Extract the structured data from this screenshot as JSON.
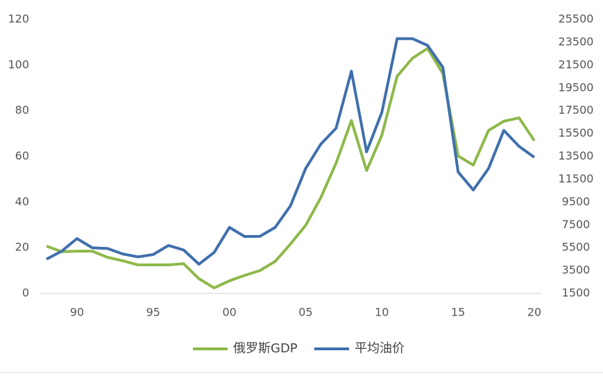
{
  "chart_data": {
    "type": "line",
    "x": [
      1988,
      1989,
      1990,
      1991,
      1992,
      1993,
      1994,
      1995,
      1996,
      1997,
      1998,
      1999,
      2000,
      2001,
      2002,
      2003,
      2004,
      2005,
      2006,
      2007,
      2008,
      2009,
      2010,
      2011,
      2012,
      2013,
      2014,
      2015,
      2016,
      2017,
      2018,
      2019,
      2020
    ],
    "xlim": [
      1988,
      2020
    ],
    "xticks": [
      {
        "value": 1990,
        "label": "90"
      },
      {
        "value": 1995,
        "label": "95"
      },
      {
        "value": 2000,
        "label": "00"
      },
      {
        "value": 2005,
        "label": "05"
      },
      {
        "value": 2010,
        "label": "10"
      },
      {
        "value": 2015,
        "label": "15"
      },
      {
        "value": 2020,
        "label": "20"
      }
    ],
    "ylim": [
      0,
      120
    ],
    "yticks": [
      0,
      20,
      40,
      60,
      80,
      100,
      120
    ],
    "y2lim": [
      1500,
      25500
    ],
    "y2ticks": [
      1500,
      3500,
      5500,
      7500,
      9500,
      11500,
      13500,
      15500,
      17500,
      19500,
      21500,
      23500,
      25500
    ],
    "legend": "bottom",
    "series": [
      {
        "name": "俄罗斯GDP",
        "color": "#8db849",
        "axis": "y2",
        "values": [
          5640,
          5150,
          5200,
          5200,
          4660,
          4360,
          4000,
          4000,
          4000,
          4100,
          2780,
          1980,
          2600,
          3080,
          3500,
          4300,
          5820,
          7460,
          9900,
          12920,
          16640,
          12260,
          15360,
          20520,
          22100,
          22960,
          20760,
          13540,
          12740,
          15780,
          16580,
          16880,
          14880
        ]
      },
      {
        "name": "平均油价",
        "color": "#3f6fad",
        "values": [
          15,
          18.5,
          24,
          20,
          19.7,
          17.3,
          16,
          17,
          21,
          19,
          12.8,
          18,
          28.9,
          24.9,
          25,
          28.9,
          38.3,
          54.7,
          65.4,
          72.4,
          97.3,
          62,
          79.3,
          111.6,
          111.6,
          108.6,
          99,
          53.2,
          45.3,
          54.7,
          71.4,
          64.4,
          59.6
        ]
      }
    ]
  }
}
